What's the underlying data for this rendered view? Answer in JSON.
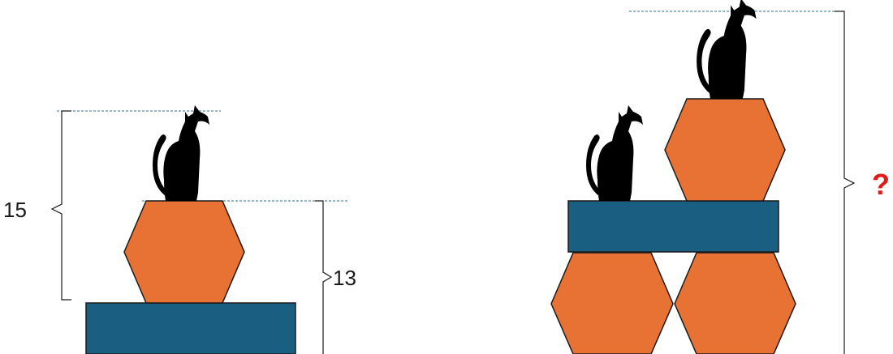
{
  "puzzle": {
    "left_figure": {
      "height_cat_on_hexagon": "15",
      "height_block_and_hexagon": "13"
    },
    "right_figure": {
      "unknown_height": "?"
    }
  },
  "colors": {
    "hexagon_fill": "#E87234",
    "block_fill": "#1A5E82",
    "cat_fill": "#000000",
    "outline": "#1a1a1a",
    "guide_line": "#2F6F8E",
    "question_mark": "#E01B1B"
  }
}
